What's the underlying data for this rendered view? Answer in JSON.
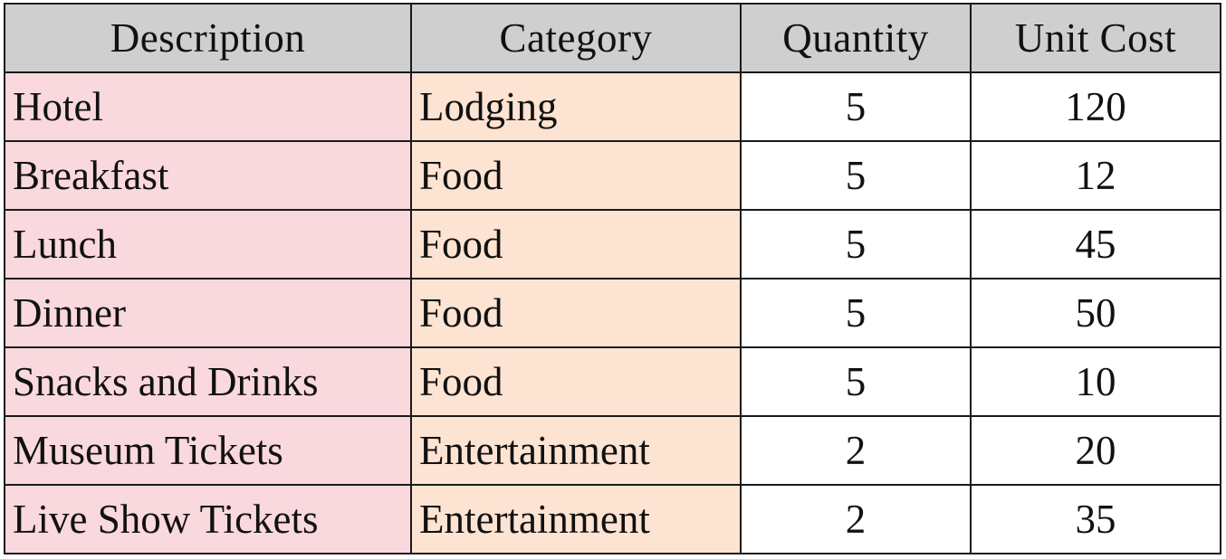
{
  "table": {
    "headers": [
      "Description",
      "Category",
      "Quantity",
      "Unit Cost"
    ],
    "rows": [
      {
        "description": "Hotel",
        "category": "Lodging",
        "quantity": "5",
        "unit_cost": "120"
      },
      {
        "description": "Breakfast",
        "category": "Food",
        "quantity": "5",
        "unit_cost": "12"
      },
      {
        "description": "Lunch",
        "category": "Food",
        "quantity": "5",
        "unit_cost": "45"
      },
      {
        "description": "Dinner",
        "category": "Food",
        "quantity": "5",
        "unit_cost": "50"
      },
      {
        "description": "Snacks and Drinks",
        "category": "Food",
        "quantity": "5",
        "unit_cost": "10"
      },
      {
        "description": "Museum Tickets",
        "category": "Entertainment",
        "quantity": "2",
        "unit_cost": "20"
      },
      {
        "description": "Live Show Tickets",
        "category": "Entertainment",
        "quantity": "2",
        "unit_cost": "35"
      }
    ]
  },
  "colors": {
    "header_bg": "#cfcfcf",
    "description_bg": "#f9d8de",
    "category_bg": "#fce3d2",
    "value_bg": "#ffffff",
    "border": "#1a1a1a"
  }
}
